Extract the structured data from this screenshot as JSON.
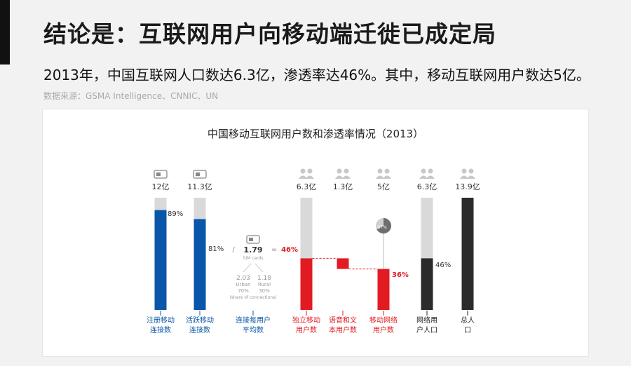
{
  "page": {
    "title": "结论是：互联网用户向移动端迁徙已成定局",
    "subtitle": "2013年，中国互联网人口数达6.3亿，渗透率达46%。其中，移动互联网用户数达5亿。",
    "source": "数据来源：GSMA Intelligence、CNNIC、UN"
  },
  "chart_data": {
    "type": "bar",
    "title": "中国移动互联网用户数和渗透率情况（2013）",
    "unit": "亿",
    "colors": {
      "blue": "#0a56a8",
      "red": "#e21b23",
      "dark": "#2b2b2b",
      "gray": "#d9d9d9",
      "icon": "#c8c8c8"
    },
    "bars": [
      {
        "category": "注册移动连接数",
        "value_label": "12亿",
        "total": 12,
        "filled": 0.89,
        "percent_label": "89%",
        "color": "blue",
        "icon": "sim-card-icon"
      },
      {
        "category": "活跃移动连接数",
        "value_label": "11.3亿",
        "total": 11.3,
        "filled": 0.81,
        "percent_label": "81%",
        "color": "blue",
        "icon": "sim-card-icon"
      },
      {
        "category": "独立移动用户数",
        "value_label": "6.3亿",
        "total": 6.3,
        "filled": 0.46,
        "percent_label": "46%",
        "color": "red",
        "icon": "users-icon"
      },
      {
        "category": "语音和文本用户数",
        "value_label": "1.3亿",
        "total": 1.3,
        "color": "red",
        "icon": "users-icon"
      },
      {
        "category": "移动网络用户数",
        "value_label": "5亿",
        "total": 5,
        "filled": 0.36,
        "percent_label": "36%",
        "color": "red",
        "icon": "users-icon"
      },
      {
        "category": "网络用户人口",
        "value_label": "6.3亿",
        "total": 6.3,
        "filled": 0.46,
        "percent_label": "46%",
        "color": "dark",
        "icon": "users-icon"
      },
      {
        "category": "总人口",
        "value_label": "13.9亿",
        "total": 13.9,
        "filled": 1.0,
        "color": "dark",
        "icon": "users-icon"
      }
    ],
    "sim_ratio": {
      "category": "连接每用户平均数",
      "value": "1.79",
      "caption": "SIM cards",
      "urban_value": "2.03",
      "urban_label": "Urban",
      "urban_share": "70%",
      "rural_value": "1.18",
      "rural_label": "Rural",
      "rural_share": "30%",
      "share_note": "(share of connections)",
      "slash": "/",
      "equals": "="
    },
    "pie": {
      "label": "67%",
      "share": 0.67
    }
  }
}
